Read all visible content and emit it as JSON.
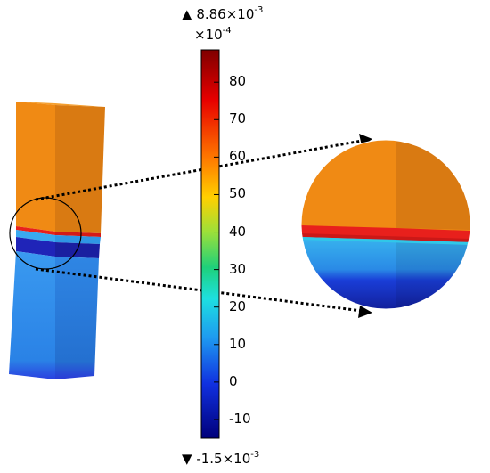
{
  "colorbar": {
    "max_label": "8.86×10",
    "max_exp": "-3",
    "scale_label": "×10",
    "scale_exp": "-4",
    "min_label": "-1.5×10",
    "min_exp": "-3",
    "max_marker": "▲",
    "min_marker": "▼",
    "ticks": [
      "80",
      "70",
      "60",
      "50",
      "40",
      "30",
      "20",
      "10",
      "0",
      "-10"
    ],
    "range": {
      "min": -15,
      "max": 88.6,
      "unit_scale": "1e-4"
    },
    "colormap": "rainbow (blue-cyan-green-yellow-red)"
  },
  "scene": {
    "beam_colors": {
      "upper": "#f08a14",
      "upper_side": "#d9780f",
      "red_band": "#e8201c",
      "dark_band": "#1f24b8",
      "lower": "#2b8be8",
      "lower_side": "#2270cc",
      "bottom_edge": "#2b44e0"
    },
    "icons": [
      "magnifier-circle",
      "arrow-icon"
    ]
  }
}
